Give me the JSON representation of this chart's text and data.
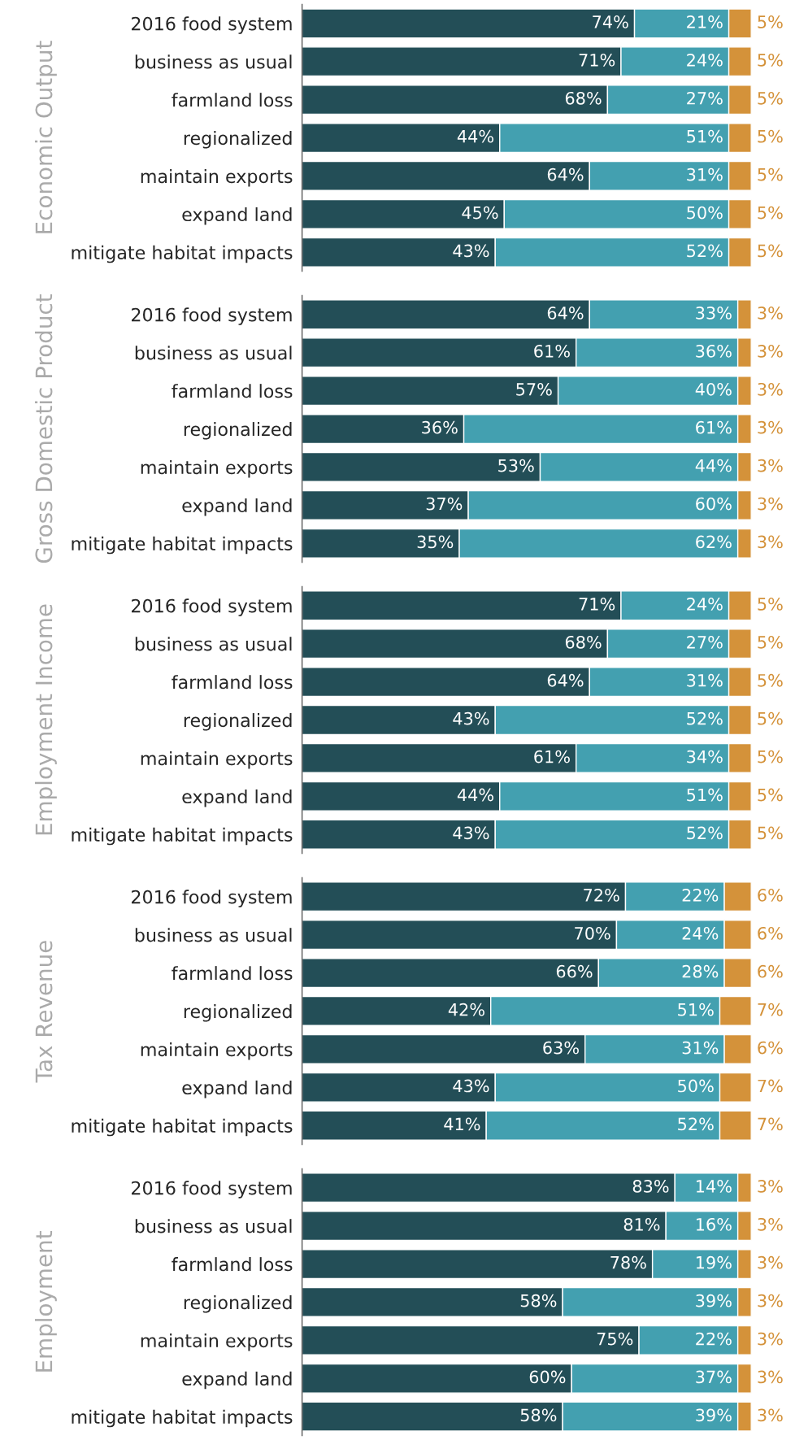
{
  "chart_data": [
    {
      "type": "bar",
      "orientation": "horizontal",
      "stacked": true,
      "ylabel": "Economic Output",
      "tick_labels": "y",
      "grid": false,
      "legend": false,
      "categories": [
        "2016 food system",
        "business as usual",
        "farmland loss",
        "regionalized",
        "maintain exports",
        "expand land",
        "mitigate habitat impacts"
      ],
      "series": [
        {
          "color": "#234e57",
          "values": [
            74,
            71,
            68,
            44,
            64,
            45,
            43
          ],
          "value_labels": [
            "74%",
            "71%",
            "68%",
            "44%",
            "64%",
            "45%",
            "43%"
          ]
        },
        {
          "color": "#43a0b0",
          "values": [
            21,
            24,
            27,
            51,
            31,
            50,
            52
          ],
          "value_labels": [
            "21%",
            "24%",
            "27%",
            "51%",
            "31%",
            "50%",
            "52%"
          ]
        },
        {
          "color": "#d4923a",
          "values": [
            5,
            5,
            5,
            5,
            5,
            5,
            5
          ],
          "value_labels": [
            "5%",
            "5%",
            "5%",
            "5%",
            "5%",
            "5%",
            "5%"
          ]
        }
      ]
    },
    {
      "type": "bar",
      "orientation": "horizontal",
      "stacked": true,
      "ylabel": "Gross Domestic Product",
      "tick_labels": "y",
      "grid": false,
      "legend": false,
      "categories": [
        "2016 food system",
        "business as usual",
        "farmland loss",
        "regionalized",
        "maintain exports",
        "expand land",
        "mitigate habitat impacts"
      ],
      "series": [
        {
          "color": "#234e57",
          "values": [
            64,
            61,
            57,
            36,
            53,
            37,
            35
          ],
          "value_labels": [
            "64%",
            "61%",
            "57%",
            "36%",
            "53%",
            "37%",
            "35%"
          ]
        },
        {
          "color": "#43a0b0",
          "values": [
            33,
            36,
            40,
            61,
            44,
            60,
            62
          ],
          "value_labels": [
            "33%",
            "36%",
            "40%",
            "61%",
            "44%",
            "60%",
            "62%"
          ]
        },
        {
          "color": "#d4923a",
          "values": [
            3,
            3,
            3,
            3,
            3,
            3,
            3
          ],
          "value_labels": [
            "3%",
            "3%",
            "3%",
            "3%",
            "3%",
            "3%",
            "3%"
          ]
        }
      ]
    },
    {
      "type": "bar",
      "orientation": "horizontal",
      "stacked": true,
      "ylabel": "Employment Income",
      "tick_labels": "y",
      "grid": false,
      "legend": false,
      "categories": [
        "2016 food system",
        "business as usual",
        "farmland loss",
        "regionalized",
        "maintain exports",
        "expand land",
        "mitigate habitat impacts"
      ],
      "series": [
        {
          "color": "#234e57",
          "values": [
            71,
            68,
            64,
            43,
            61,
            44,
            43
          ],
          "value_labels": [
            "71%",
            "68%",
            "64%",
            "43%",
            "61%",
            "44%",
            "43%"
          ]
        },
        {
          "color": "#43a0b0",
          "values": [
            24,
            27,
            31,
            52,
            34,
            51,
            52
          ],
          "value_labels": [
            "24%",
            "27%",
            "31%",
            "52%",
            "34%",
            "51%",
            "52%"
          ]
        },
        {
          "color": "#d4923a",
          "values": [
            5,
            5,
            5,
            5,
            5,
            5,
            5
          ],
          "value_labels": [
            "5%",
            "5%",
            "5%",
            "5%",
            "5%",
            "5%",
            "5%"
          ]
        }
      ]
    },
    {
      "type": "bar",
      "orientation": "horizontal",
      "stacked": true,
      "ylabel": "Tax Revenue",
      "tick_labels": "y",
      "grid": false,
      "legend": false,
      "categories": [
        "2016 food system",
        "business as usual",
        "farmland loss",
        "regionalized",
        "maintain exports",
        "expand land",
        "mitigate habitat impacts"
      ],
      "series": [
        {
          "color": "#234e57",
          "values": [
            72,
            70,
            66,
            42,
            63,
            43,
            41
          ],
          "value_labels": [
            "72%",
            "70%",
            "66%",
            "42%",
            "63%",
            "43%",
            "41%"
          ]
        },
        {
          "color": "#43a0b0",
          "values": [
            22,
            24,
            28,
            51,
            31,
            50,
            52
          ],
          "value_labels": [
            "22%",
            "24%",
            "28%",
            "51%",
            "31%",
            "50%",
            "52%"
          ]
        },
        {
          "color": "#d4923a",
          "values": [
            6,
            6,
            6,
            7,
            6,
            7,
            7
          ],
          "value_labels": [
            "6%",
            "6%",
            "6%",
            "7%",
            "6%",
            "7%",
            "7%"
          ]
        }
      ]
    },
    {
      "type": "bar",
      "orientation": "horizontal",
      "stacked": true,
      "ylabel": "Employment",
      "tick_labels": "y",
      "grid": false,
      "legend": false,
      "categories": [
        "2016 food system",
        "business as usual",
        "farmland loss",
        "regionalized",
        "maintain exports",
        "expand land",
        "mitigate habitat impacts"
      ],
      "series": [
        {
          "color": "#234e57",
          "values": [
            83,
            81,
            78,
            58,
            75,
            60,
            58
          ],
          "value_labels": [
            "83%",
            "81%",
            "78%",
            "58%",
            "75%",
            "60%",
            "58%"
          ]
        },
        {
          "color": "#43a0b0",
          "values": [
            14,
            16,
            19,
            39,
            22,
            37,
            39
          ],
          "value_labels": [
            "14%",
            "16%",
            "19%",
            "39%",
            "22%",
            "37%",
            "39%"
          ]
        },
        {
          "color": "#d4923a",
          "values": [
            3,
            3,
            3,
            3,
            3,
            3,
            3
          ],
          "value_labels": [
            "3%",
            "3%",
            "3%",
            "3%",
            "3%",
            "3%",
            "3%"
          ]
        }
      ]
    }
  ]
}
